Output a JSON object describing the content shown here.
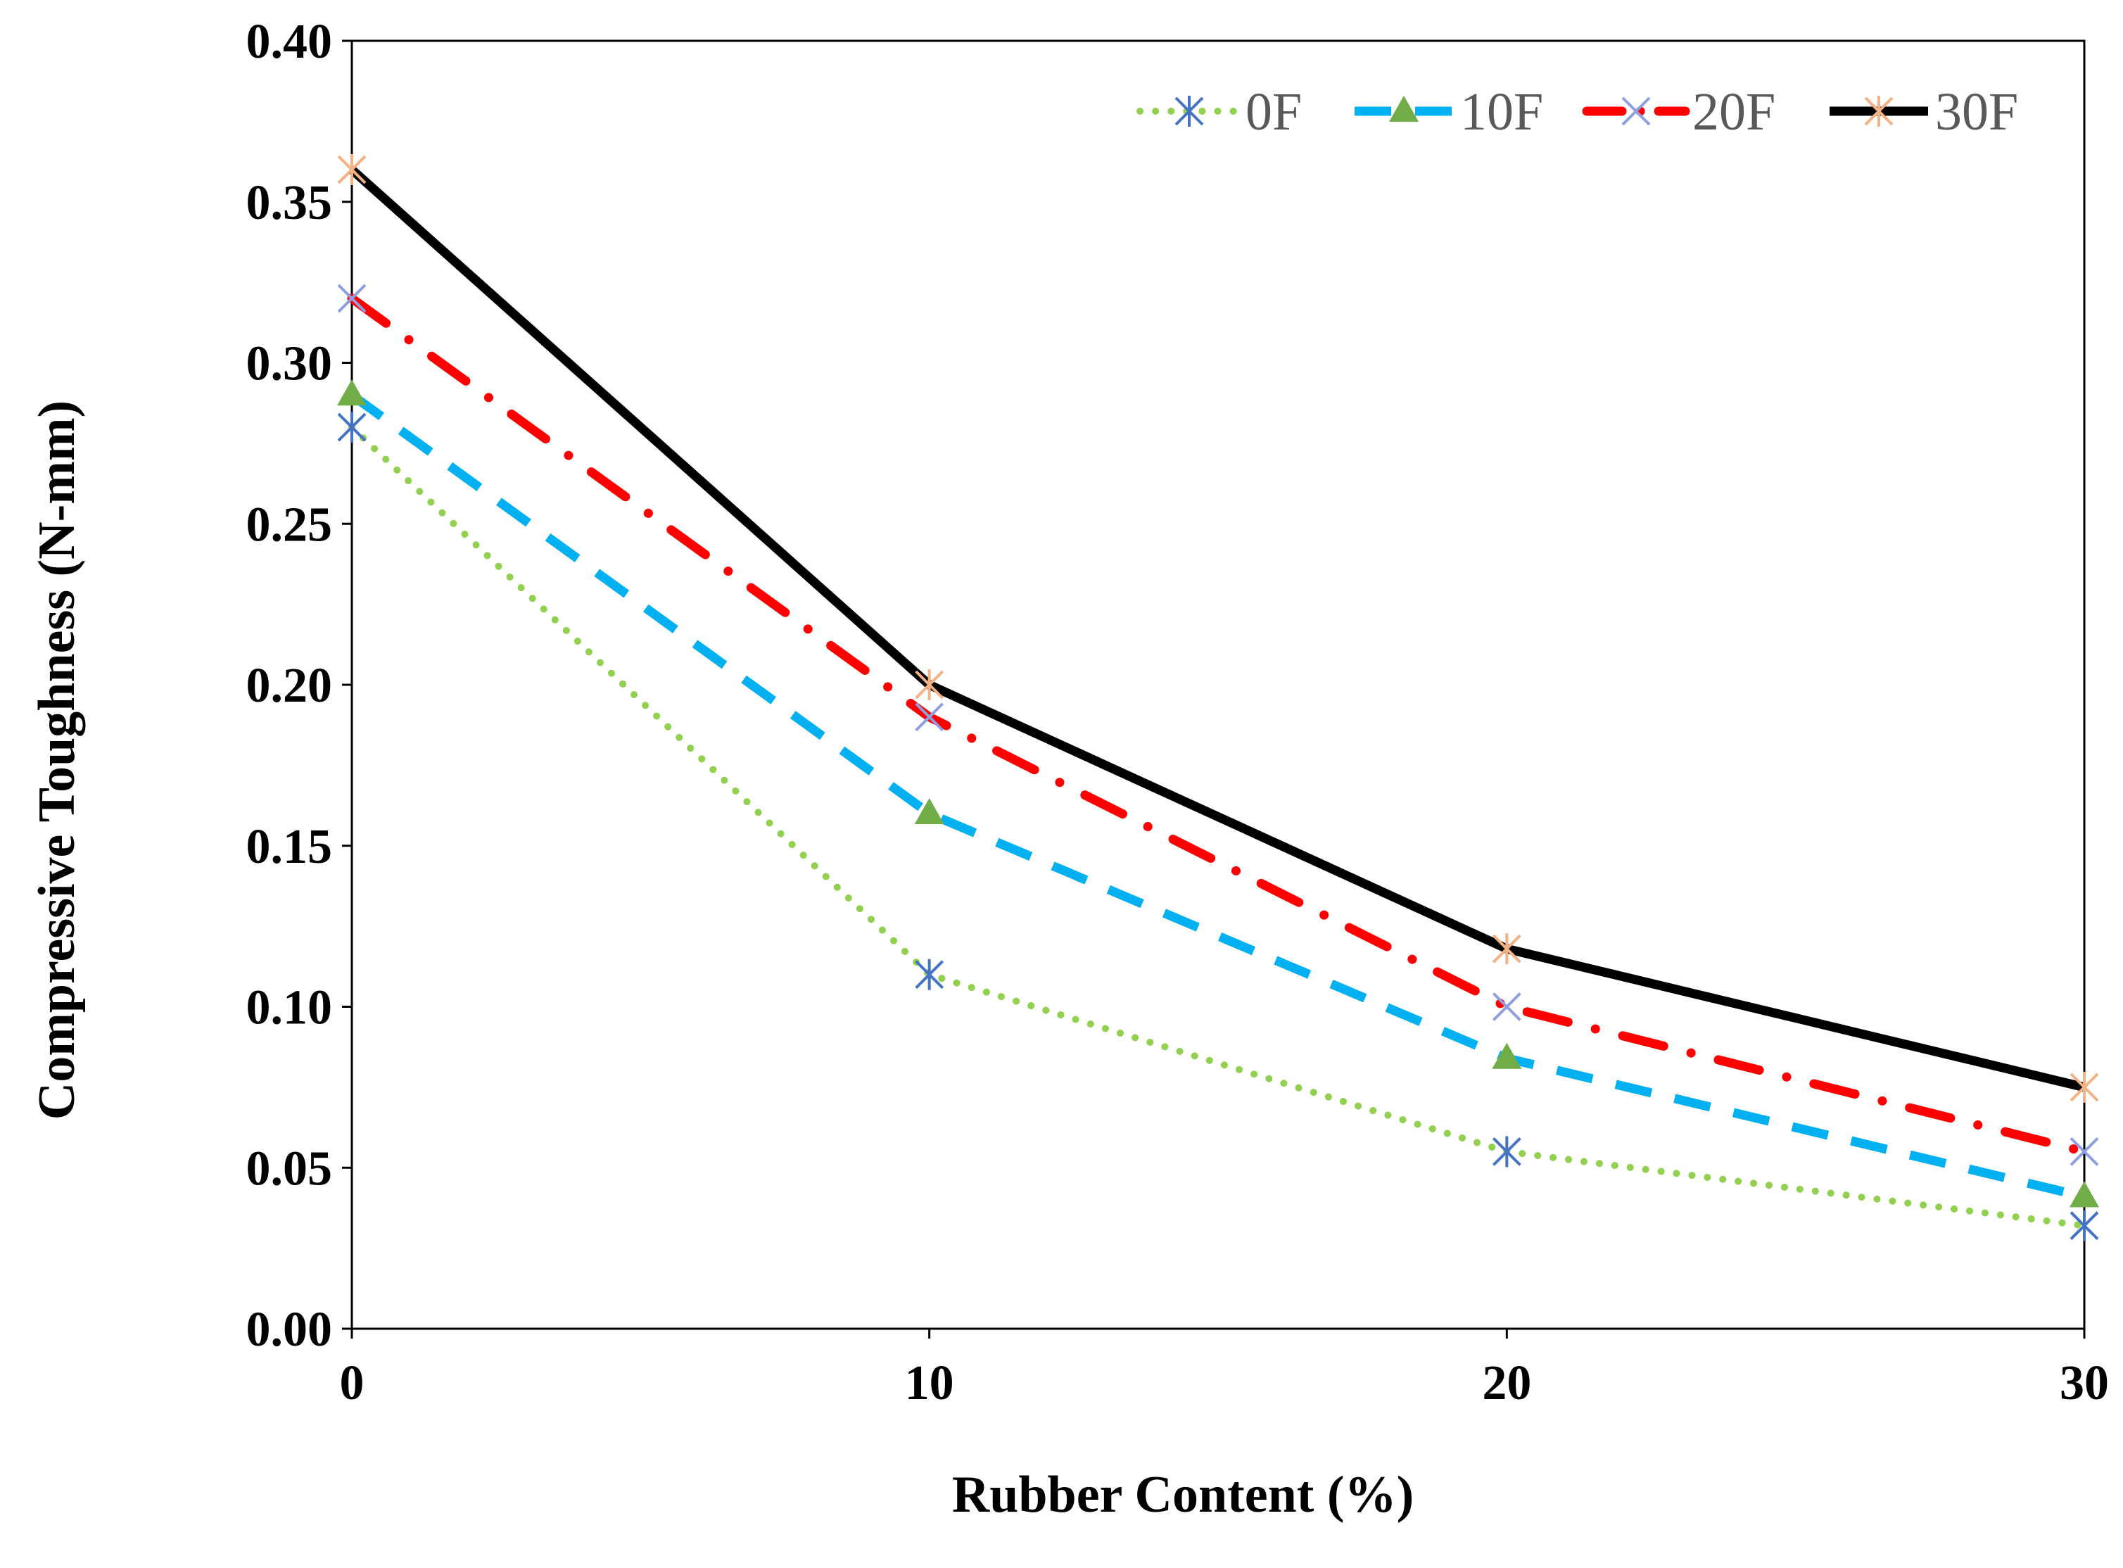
{
  "chart_data": {
    "type": "line",
    "title": "",
    "xlabel": "Rubber Content (%)",
    "ylabel": "Compressive Toughness (N-mm)",
    "x": [
      0,
      10,
      20,
      30
    ],
    "xticks": [
      "0",
      "10",
      "20",
      "30"
    ],
    "xlim": [
      0,
      30
    ],
    "ylim": [
      0,
      0.4
    ],
    "yticks": [
      "0.00",
      "0.05",
      "0.10",
      "0.15",
      "0.20",
      "0.25",
      "0.30",
      "0.35",
      "0.40"
    ],
    "grid": false,
    "legend_position": "top-right",
    "series": [
      {
        "name": "0F",
        "values": [
          0.28,
          0.11,
          0.055,
          0.032
        ],
        "line_color": "#92d050",
        "marker_color": "#4472c4",
        "line_style": "dotted",
        "marker": "asterisk"
      },
      {
        "name": "10F",
        "values": [
          0.29,
          0.16,
          0.084,
          0.041
        ],
        "line_color": "#00b0f0",
        "marker_color": "#70ad47",
        "line_style": "dashed",
        "marker": "triangle"
      },
      {
        "name": "20F",
        "values": [
          0.32,
          0.19,
          0.1,
          0.055
        ],
        "line_color": "#ff0000",
        "marker_color": "#8e9fe0",
        "line_style": "dash-dot",
        "marker": "x"
      },
      {
        "name": "30F",
        "values": [
          0.36,
          0.2,
          0.118,
          0.075
        ],
        "line_color": "#000000",
        "marker_color": "#f4b183",
        "line_style": "solid",
        "marker": "star"
      }
    ]
  }
}
